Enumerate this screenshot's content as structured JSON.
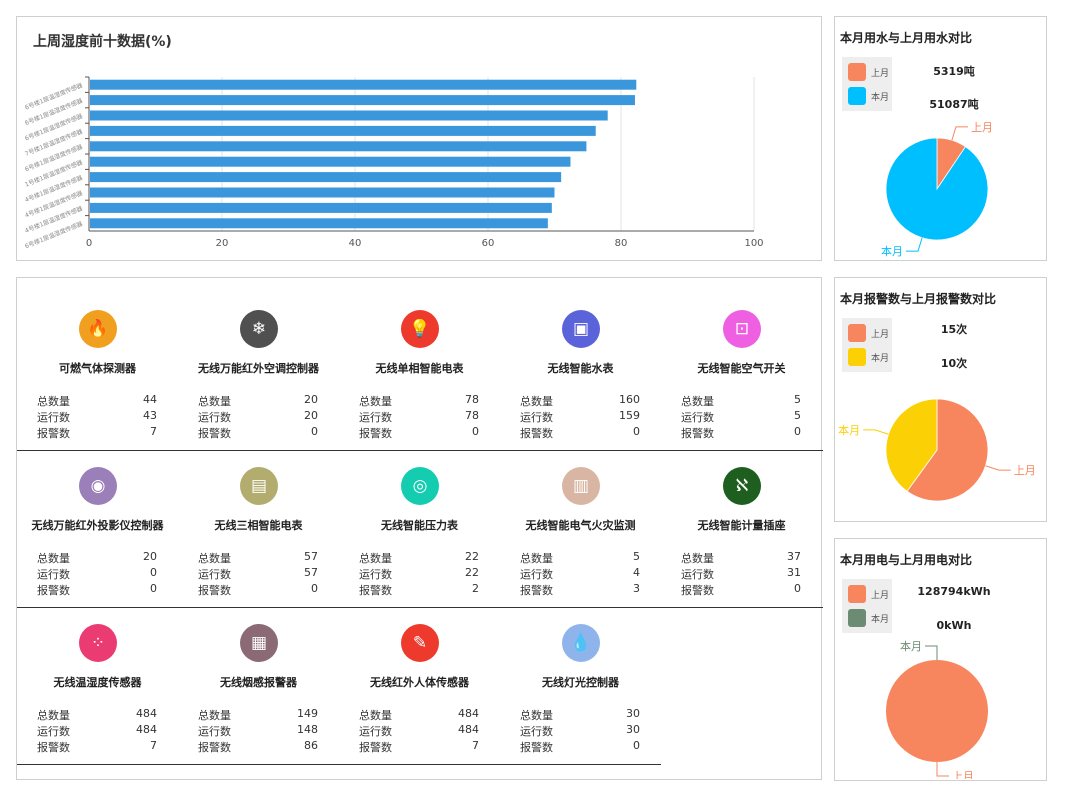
{
  "humidity_chart": {
    "title": "上周湿度前十数据(%)",
    "chart_data": {
      "type": "bar",
      "orientation": "horizontal",
      "title": "上周湿度前十数据(%)",
      "xlim": [
        0,
        100
      ],
      "x_ticks": [
        0,
        20,
        40,
        60,
        80,
        100
      ],
      "categories": [
        "6号楼1层温湿度传感器",
        "6号楼1层温湿度传感器",
        "6号楼1层温湿度传感器",
        "7号楼1层温湿度传感器",
        "6号楼1层温湿度传感器",
        "1号楼1层温湿度传感器",
        "4号楼1层温湿度传感器",
        "4号楼1层温湿度传感器",
        "4号楼1层温湿度传感器",
        "6号楼1层温湿度传感器"
      ],
      "values": [
        82.3,
        82.1,
        78.0,
        76.2,
        74.8,
        72.4,
        71.0,
        70.0,
        69.6,
        69.0
      ],
      "color": "#3b97dc",
      "grid": true
    }
  },
  "water": {
    "title": "本月用水与上月用水对比",
    "legend": [
      {
        "label": "上月",
        "color": "#f7865e",
        "value": "5319吨"
      },
      {
        "label": "本月",
        "color": "#00bfff",
        "value": "51087吨"
      }
    ],
    "chart_data": {
      "type": "pie",
      "labels": [
        "上月",
        "本月"
      ],
      "values": [
        5319,
        51087
      ],
      "colors": [
        "#f7865e",
        "#00bfff"
      ]
    }
  },
  "alarm": {
    "title": "本月报警数与上月报警数对比",
    "legend": [
      {
        "label": "上月",
        "color": "#f7865e",
        "value": "15次"
      },
      {
        "label": "本月",
        "color": "#fbd005",
        "value": "10次"
      }
    ],
    "chart_data": {
      "type": "pie",
      "labels": [
        "上月",
        "本月"
      ],
      "values": [
        15,
        10
      ],
      "colors": [
        "#f7865e",
        "#fbd005"
      ]
    }
  },
  "power": {
    "title": "本月用电与上月用电对比",
    "legend": [
      {
        "label": "上月",
        "color": "#f7865e",
        "value": "128794kWh"
      },
      {
        "label": "本月",
        "color": "#6b8c72",
        "value": "0kWh"
      }
    ],
    "chart_data": {
      "type": "pie",
      "labels": [
        "上月",
        "本月"
      ],
      "values": [
        128794,
        0
      ],
      "colors": [
        "#f7865e",
        "#6b8c72"
      ]
    }
  },
  "stat_labels": {
    "total": "总数量",
    "running": "运行数",
    "alarm": "报警数"
  },
  "devices": [
    {
      "name": "可燃气体探测器",
      "icon": "flame-icon",
      "glyph": "🔥",
      "color": "#f0a01e",
      "total": "44",
      "running": "43",
      "alarm": "7"
    },
    {
      "name": "无线万能红外空调控制器",
      "icon": "air-conditioner-icon",
      "glyph": "❄",
      "color": "#505050",
      "total": "20",
      "running": "20",
      "alarm": "0"
    },
    {
      "name": "无线单相智能电表",
      "icon": "bulb-icon",
      "glyph": "💡",
      "color": "#ee3a2c",
      "total": "78",
      "running": "78",
      "alarm": "0"
    },
    {
      "name": "无线智能水表",
      "icon": "water-meter-icon",
      "glyph": "▣",
      "color": "#5a63d9",
      "total": "160",
      "running": "159",
      "alarm": "0"
    },
    {
      "name": "无线智能空气开关",
      "icon": "switch-icon",
      "glyph": "⊡",
      "color": "#ef5fe2",
      "total": "5",
      "running": "5",
      "alarm": "0"
    },
    {
      "name": "无线万能红外投影仪控制器",
      "icon": "projector-icon",
      "glyph": "◉",
      "color": "#9a7fb8",
      "total": "20",
      "running": "0",
      "alarm": "0"
    },
    {
      "name": "无线三相智能电表",
      "icon": "meter-icon",
      "glyph": "▤",
      "color": "#b2ad6e",
      "total": "57",
      "running": "57",
      "alarm": "0"
    },
    {
      "name": "无线智能压力表",
      "icon": "gauge-icon",
      "glyph": "◎",
      "color": "#14cdb1",
      "total": "22",
      "running": "22",
      "alarm": "2"
    },
    {
      "name": "无线智能电气火灾监测",
      "icon": "fire-monitor-icon",
      "glyph": "▥",
      "color": "#d8b6a3",
      "total": "5",
      "running": "4",
      "alarm": "3"
    },
    {
      "name": "无线智能计量插座",
      "icon": "socket-icon",
      "glyph": "ℵ",
      "color": "#1e5e1e",
      "total": "37",
      "running": "31",
      "alarm": "0"
    },
    {
      "name": "无线温湿度传感器",
      "icon": "thermometer-icon",
      "glyph": "⁘",
      "color": "#ea3b73",
      "total": "484",
      "running": "484",
      "alarm": "7"
    },
    {
      "name": "无线烟感报警器",
      "icon": "smoke-detector-icon",
      "glyph": "▦",
      "color": "#8b6a76",
      "total": "149",
      "running": "148",
      "alarm": "86"
    },
    {
      "name": "无线红外人体传感器",
      "icon": "infrared-sensor-icon",
      "glyph": "✎",
      "color": "#ee3a2c",
      "total": "484",
      "running": "484",
      "alarm": "7"
    },
    {
      "name": "无线灯光控制器",
      "icon": "light-control-icon",
      "glyph": "💧",
      "color": "#8fb4ec",
      "total": "30",
      "running": "30",
      "alarm": "0"
    }
  ]
}
